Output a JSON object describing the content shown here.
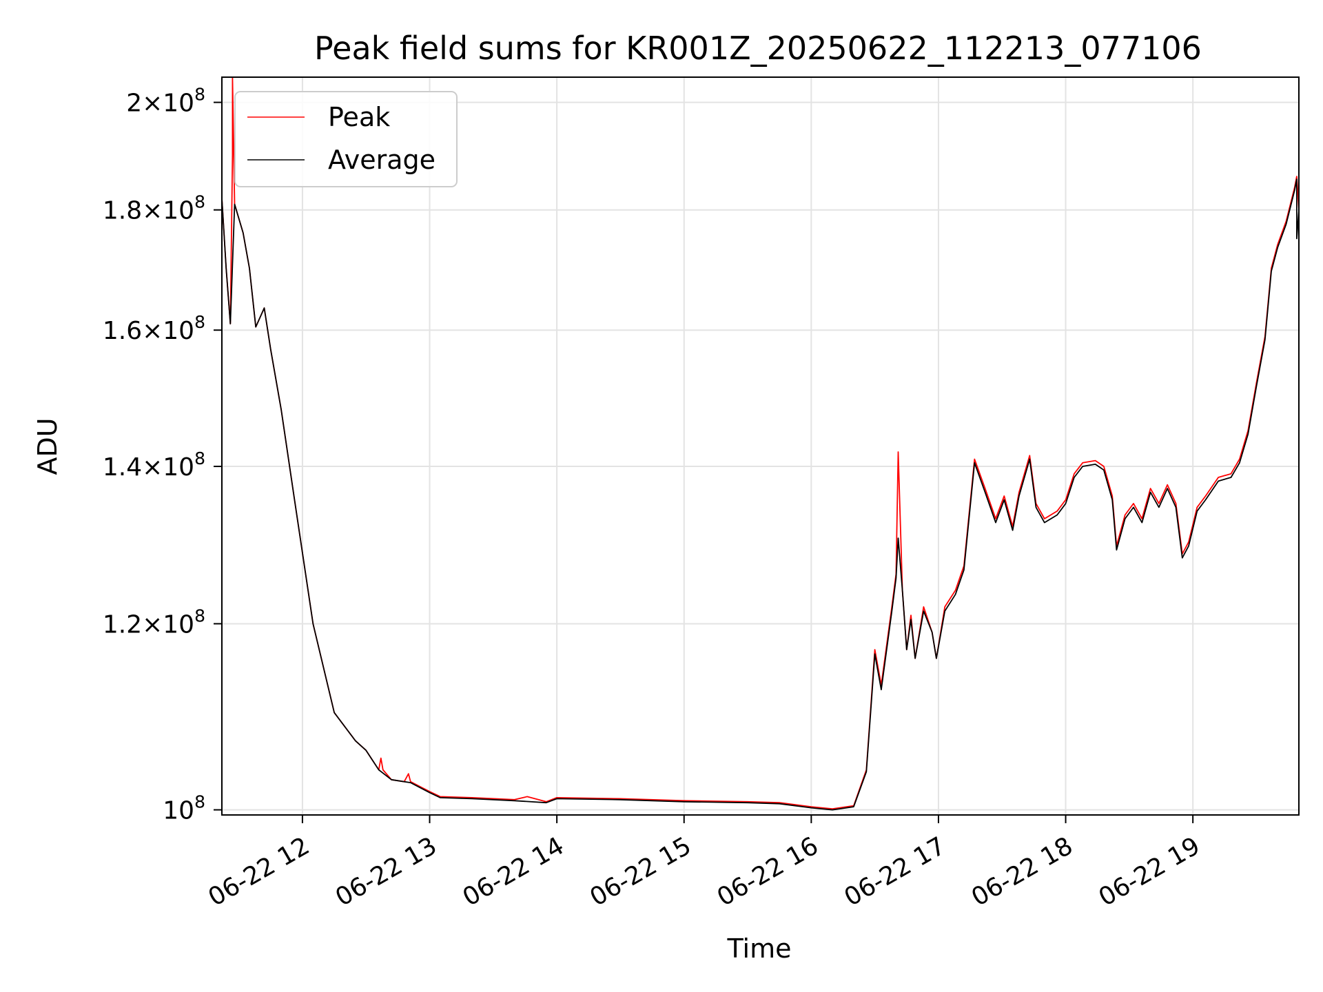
{
  "chart_data": {
    "type": "line",
    "title": "Peak field sums for KR001Z_20250622_112213_077106",
    "xlabel": "Time",
    "ylabel": "ADU",
    "yscale": "log",
    "xlim": [
      "2025-06-22 11:22",
      "2025-06-22 19:50"
    ],
    "ylim": [
      99500000,
      205000000
    ],
    "x_ticks": [
      "06-22 12",
      "06-22 13",
      "06-22 14",
      "06-22 15",
      "06-22 16",
      "06-22 17",
      "06-22 18",
      "06-22 19"
    ],
    "y_ticks": [
      {
        "value": 100000000,
        "mantissa": "",
        "exponent": "8"
      },
      {
        "value": 120000000,
        "mantissa": "1.2",
        "exponent": "8"
      },
      {
        "value": 140000000,
        "mantissa": "1.4",
        "exponent": "8"
      },
      {
        "value": 160000000,
        "mantissa": "1.6",
        "exponent": "8"
      },
      {
        "value": 180000000,
        "mantissa": "1.8",
        "exponent": "8"
      },
      {
        "value": 200000000,
        "mantissa": "2",
        "exponent": "8"
      }
    ],
    "grid": true,
    "legend": {
      "location": "upper-left",
      "entries": [
        "Peak",
        "Average"
      ]
    },
    "series": [
      {
        "name": "Peak",
        "color": "#ff0000",
        "points": [
          [
            "2025-06-22 11:22",
            182000000
          ],
          [
            "2025-06-22 11:24",
            170000000
          ],
          [
            "2025-06-22 11:26",
            161000000
          ],
          [
            "2025-06-22 11:27",
            190000000
          ],
          [
            "2025-06-22 11:27",
            205000000
          ],
          [
            "2025-06-22 11:28",
            181000000
          ],
          [
            "2025-06-22 11:32",
            176000000
          ],
          [
            "2025-06-22 11:35",
            170000000
          ],
          [
            "2025-06-22 11:38",
            160500000
          ],
          [
            "2025-06-22 11:42",
            163500000
          ],
          [
            "2025-06-22 11:45",
            157000000
          ],
          [
            "2025-06-22 11:50",
            148000000
          ],
          [
            "2025-06-22 11:56",
            136000000
          ],
          [
            "2025-06-22 12:05",
            120000000
          ],
          [
            "2025-06-22 12:15",
            110000000
          ],
          [
            "2025-06-22 12:25",
            107000000
          ],
          [
            "2025-06-22 12:30",
            106000000
          ],
          [
            "2025-06-22 12:36",
            104000000
          ],
          [
            "2025-06-22 12:37",
            105200000
          ],
          [
            "2025-06-22 12:38",
            104000000
          ],
          [
            "2025-06-22 12:42",
            103000000
          ],
          [
            "2025-06-22 12:48",
            102800000
          ],
          [
            "2025-06-22 12:50",
            103600000
          ],
          [
            "2025-06-22 12:51",
            102800000
          ],
          [
            "2025-06-22 13:00",
            101800000
          ],
          [
            "2025-06-22 13:05",
            101300000
          ],
          [
            "2025-06-22 13:20",
            101200000
          ],
          [
            "2025-06-22 13:40",
            101000000
          ],
          [
            "2025-06-22 13:46",
            101300000
          ],
          [
            "2025-06-22 13:55",
            100800000
          ],
          [
            "2025-06-22 14:00",
            101200000
          ],
          [
            "2025-06-22 14:30",
            101100000
          ],
          [
            "2025-06-22 15:00",
            100900000
          ],
          [
            "2025-06-22 15:30",
            100800000
          ],
          [
            "2025-06-22 15:45",
            100700000
          ],
          [
            "2025-06-22 16:00",
            100300000
          ],
          [
            "2025-06-22 16:10",
            100100000
          ],
          [
            "2025-06-22 16:20",
            100400000
          ],
          [
            "2025-06-22 16:26",
            104000000
          ],
          [
            "2025-06-22 16:30",
            117000000
          ],
          [
            "2025-06-22 16:33",
            113000000
          ],
          [
            "2025-06-22 16:38",
            122000000
          ],
          [
            "2025-06-22 16:40",
            126000000
          ],
          [
            "2025-06-22 16:41",
            142000000
          ],
          [
            "2025-06-22 16:43",
            124000000
          ],
          [
            "2025-06-22 16:45",
            117000000
          ],
          [
            "2025-06-22 16:47",
            121000000
          ],
          [
            "2025-06-22 16:49",
            116000000
          ],
          [
            "2025-06-22 16:53",
            122000000
          ],
          [
            "2025-06-22 16:57",
            119000000
          ],
          [
            "2025-06-22 16:59",
            116000000
          ],
          [
            "2025-06-22 17:03",
            122000000
          ],
          [
            "2025-06-22 17:08",
            124000000
          ],
          [
            "2025-06-22 17:12",
            127000000
          ],
          [
            "2025-06-22 17:17",
            141000000
          ],
          [
            "2025-06-22 17:22",
            137000000
          ],
          [
            "2025-06-22 17:27",
            133000000
          ],
          [
            "2025-06-22 17:31",
            136000000
          ],
          [
            "2025-06-22 17:35",
            132000000
          ],
          [
            "2025-06-22 17:38",
            136500000
          ],
          [
            "2025-06-22 17:43",
            141500000
          ],
          [
            "2025-06-22 17:46",
            135000000
          ],
          [
            "2025-06-22 17:50",
            133000000
          ],
          [
            "2025-06-22 17:56",
            134000000
          ],
          [
            "2025-06-22 18:00",
            135500000
          ],
          [
            "2025-06-22 18:04",
            139000000
          ],
          [
            "2025-06-22 18:08",
            140500000
          ],
          [
            "2025-06-22 18:14",
            140800000
          ],
          [
            "2025-06-22 18:18",
            140000000
          ],
          [
            "2025-06-22 18:22",
            136000000
          ],
          [
            "2025-06-22 18:24",
            129500000
          ],
          [
            "2025-06-22 18:28",
            133500000
          ],
          [
            "2025-06-22 18:32",
            135000000
          ],
          [
            "2025-06-22 18:36",
            133000000
          ],
          [
            "2025-06-22 18:40",
            137000000
          ],
          [
            "2025-06-22 18:44",
            135000000
          ],
          [
            "2025-06-22 18:48",
            137500000
          ],
          [
            "2025-06-22 18:52",
            135000000
          ],
          [
            "2025-06-22 18:55",
            128500000
          ],
          [
            "2025-06-22 18:58",
            130000000
          ],
          [
            "2025-06-22 19:02",
            134500000
          ],
          [
            "2025-06-22 19:06",
            136000000
          ],
          [
            "2025-06-22 19:12",
            138500000
          ],
          [
            "2025-06-22 19:18",
            139000000
          ],
          [
            "2025-06-22 19:22",
            141000000
          ],
          [
            "2025-06-22 19:26",
            145000000
          ],
          [
            "2025-06-22 19:30",
            152000000
          ],
          [
            "2025-06-22 19:34",
            159000000
          ],
          [
            "2025-06-22 19:37",
            170000000
          ],
          [
            "2025-06-22 19:40",
            174000000
          ],
          [
            "2025-06-22 19:44",
            178000000
          ],
          [
            "2025-06-22 19:48",
            184000000
          ],
          [
            "2025-06-22 19:49",
            186000000
          ],
          [
            "2025-06-22 19:50",
            180000000
          ]
        ]
      },
      {
        "name": "Average",
        "color": "#000000",
        "points": [
          [
            "2025-06-22 11:22",
            182000000
          ],
          [
            "2025-06-22 11:24",
            170000000
          ],
          [
            "2025-06-22 11:26",
            161000000
          ],
          [
            "2025-06-22 11:28",
            181000000
          ],
          [
            "2025-06-22 11:32",
            176000000
          ],
          [
            "2025-06-22 11:35",
            170000000
          ],
          [
            "2025-06-22 11:38",
            160500000
          ],
          [
            "2025-06-22 11:42",
            163500000
          ],
          [
            "2025-06-22 11:45",
            157000000
          ],
          [
            "2025-06-22 11:50",
            148000000
          ],
          [
            "2025-06-22 11:56",
            136000000
          ],
          [
            "2025-06-22 12:05",
            120000000
          ],
          [
            "2025-06-22 12:15",
            110000000
          ],
          [
            "2025-06-22 12:25",
            107000000
          ],
          [
            "2025-06-22 12:30",
            106000000
          ],
          [
            "2025-06-22 12:36",
            104000000
          ],
          [
            "2025-06-22 12:42",
            103000000
          ],
          [
            "2025-06-22 12:48",
            102800000
          ],
          [
            "2025-06-22 12:51",
            102700000
          ],
          [
            "2025-06-22 13:00",
            101700000
          ],
          [
            "2025-06-22 13:05",
            101200000
          ],
          [
            "2025-06-22 13:20",
            101100000
          ],
          [
            "2025-06-22 13:40",
            100900000
          ],
          [
            "2025-06-22 13:55",
            100700000
          ],
          [
            "2025-06-22 14:00",
            101100000
          ],
          [
            "2025-06-22 14:30",
            101000000
          ],
          [
            "2025-06-22 15:00",
            100800000
          ],
          [
            "2025-06-22 15:30",
            100700000
          ],
          [
            "2025-06-22 15:45",
            100600000
          ],
          [
            "2025-06-22 16:00",
            100200000
          ],
          [
            "2025-06-22 16:10",
            100000000
          ],
          [
            "2025-06-22 16:20",
            100300000
          ],
          [
            "2025-06-22 16:26",
            103800000
          ],
          [
            "2025-06-22 16:30",
            116500000
          ],
          [
            "2025-06-22 16:33",
            112500000
          ],
          [
            "2025-06-22 16:38",
            121500000
          ],
          [
            "2025-06-22 16:40",
            125500000
          ],
          [
            "2025-06-22 16:41",
            130500000
          ],
          [
            "2025-06-22 16:43",
            124000000
          ],
          [
            "2025-06-22 16:45",
            117000000
          ],
          [
            "2025-06-22 16:47",
            120500000
          ],
          [
            "2025-06-22 16:49",
            116000000
          ],
          [
            "2025-06-22 16:53",
            121500000
          ],
          [
            "2025-06-22 16:57",
            119000000
          ],
          [
            "2025-06-22 16:59",
            116000000
          ],
          [
            "2025-06-22 17:03",
            121500000
          ],
          [
            "2025-06-22 17:08",
            123500000
          ],
          [
            "2025-06-22 17:12",
            126500000
          ],
          [
            "2025-06-22 17:17",
            140500000
          ],
          [
            "2025-06-22 17:22",
            136500000
          ],
          [
            "2025-06-22 17:27",
            132500000
          ],
          [
            "2025-06-22 17:31",
            135500000
          ],
          [
            "2025-06-22 17:35",
            131500000
          ],
          [
            "2025-06-22 17:38",
            136000000
          ],
          [
            "2025-06-22 17:43",
            141000000
          ],
          [
            "2025-06-22 17:46",
            134500000
          ],
          [
            "2025-06-22 17:50",
            132500000
          ],
          [
            "2025-06-22 17:56",
            133500000
          ],
          [
            "2025-06-22 18:00",
            135000000
          ],
          [
            "2025-06-22 18:04",
            138500000
          ],
          [
            "2025-06-22 18:08",
            140000000
          ],
          [
            "2025-06-22 18:14",
            140300000
          ],
          [
            "2025-06-22 18:18",
            139500000
          ],
          [
            "2025-06-22 18:22",
            135500000
          ],
          [
            "2025-06-22 18:24",
            129000000
          ],
          [
            "2025-06-22 18:28",
            133000000
          ],
          [
            "2025-06-22 18:32",
            134500000
          ],
          [
            "2025-06-22 18:36",
            132500000
          ],
          [
            "2025-06-22 18:40",
            136500000
          ],
          [
            "2025-06-22 18:44",
            134500000
          ],
          [
            "2025-06-22 18:48",
            137000000
          ],
          [
            "2025-06-22 18:52",
            134500000
          ],
          [
            "2025-06-22 18:55",
            128000000
          ],
          [
            "2025-06-22 18:58",
            129500000
          ],
          [
            "2025-06-22 19:02",
            134000000
          ],
          [
            "2025-06-22 19:06",
            135500000
          ],
          [
            "2025-06-22 19:12",
            138000000
          ],
          [
            "2025-06-22 19:18",
            138500000
          ],
          [
            "2025-06-22 19:22",
            140500000
          ],
          [
            "2025-06-22 19:26",
            144500000
          ],
          [
            "2025-06-22 19:30",
            151500000
          ],
          [
            "2025-06-22 19:34",
            158500000
          ],
          [
            "2025-06-22 19:37",
            169500000
          ],
          [
            "2025-06-22 19:40",
            173500000
          ],
          [
            "2025-06-22 19:44",
            177500000
          ],
          [
            "2025-06-22 19:48",
            183500000
          ],
          [
            "2025-06-22 19:49",
            185500000
          ],
          [
            "2025-06-22 19:49",
            175000000
          ],
          [
            "2025-06-22 19:50",
            180000000
          ]
        ]
      }
    ]
  }
}
